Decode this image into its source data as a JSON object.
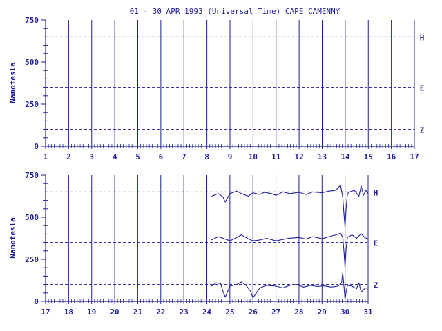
{
  "chart_data": [
    {
      "type": "line",
      "title": "01 - 30 APR 1993 (Universal Time) CAPE CAMENNY",
      "ylabel": "Nanotesla",
      "x_ticks": [
        "1",
        "2",
        "3",
        "4",
        "5",
        "6",
        "7",
        "8",
        "9",
        "10",
        "11",
        "12",
        "13",
        "14",
        "15",
        "16",
        "17"
      ],
      "xlim": [
        1,
        17
      ],
      "ylim": [
        0,
        750
      ],
      "y_ticks": [
        "0",
        "250",
        "500",
        "750"
      ],
      "grid": "vertical lines at each day",
      "series": [
        {
          "name": "H",
          "baseline": 650,
          "values": []
        },
        {
          "name": "E",
          "baseline": 350,
          "values": []
        },
        {
          "name": "Z",
          "baseline": 100,
          "values": []
        }
      ]
    },
    {
      "type": "line",
      "title": "",
      "ylabel": "Nanotesla",
      "x_ticks": [
        "17",
        "18",
        "19",
        "20",
        "21",
        "22",
        "23",
        "24",
        "25",
        "26",
        "27",
        "28",
        "29",
        "30",
        "31"
      ],
      "xlim": [
        17,
        31
      ],
      "ylim": [
        0,
        750
      ],
      "y_ticks": [
        "0",
        "250",
        "500",
        "750"
      ],
      "grid": "vertical lines at each day",
      "series": [
        {
          "name": "H",
          "baseline": 650,
          "x": [
            24.2,
            24.5,
            24.7,
            24.8,
            25.0,
            25.3,
            25.5,
            25.8,
            26.0,
            26.3,
            26.5,
            26.8,
            27.0,
            27.3,
            27.6,
            28.0,
            28.3,
            28.6,
            29.0,
            29.3,
            29.6,
            29.8,
            29.9,
            29.95,
            30.0,
            30.05,
            30.1,
            30.2,
            30.4,
            30.6,
            30.7,
            30.8,
            30.9,
            31.0
          ],
          "values": [
            625,
            640,
            620,
            590,
            640,
            655,
            640,
            625,
            645,
            635,
            648,
            640,
            630,
            650,
            640,
            648,
            635,
            650,
            645,
            655,
            660,
            690,
            620,
            520,
            440,
            560,
            640,
            650,
            660,
            625,
            685,
            630,
            660,
            640
          ]
        },
        {
          "name": "E",
          "baseline": 350,
          "x": [
            24.2,
            24.5,
            24.8,
            25.0,
            25.3,
            25.5,
            25.8,
            26.0,
            26.3,
            26.6,
            27.0,
            27.3,
            27.6,
            28.0,
            28.3,
            28.6,
            29.0,
            29.3,
            29.6,
            29.8,
            29.9,
            29.95,
            30.0,
            30.05,
            30.1,
            30.3,
            30.5,
            30.7,
            30.85,
            31.0
          ],
          "values": [
            365,
            385,
            370,
            360,
            380,
            395,
            372,
            360,
            365,
            375,
            360,
            368,
            376,
            380,
            370,
            385,
            372,
            385,
            395,
            405,
            380,
            300,
            200,
            320,
            380,
            395,
            375,
            402,
            380,
            370
          ]
        },
        {
          "name": "Z",
          "baseline": 100,
          "x": [
            24.2,
            24.4,
            24.6,
            24.7,
            24.8,
            25.0,
            25.3,
            25.5,
            25.7,
            25.9,
            26.0,
            26.3,
            26.6,
            27.0,
            27.3,
            27.6,
            27.9,
            28.2,
            28.5,
            28.8,
            29.1,
            29.4,
            29.7,
            29.85,
            29.9,
            29.95,
            30.0,
            30.05,
            30.1,
            30.3,
            30.5,
            30.6,
            30.7,
            30.8,
            30.9,
            31.0
          ],
          "values": [
            90,
            110,
            105,
            60,
            25,
            90,
            100,
            115,
            95,
            60,
            20,
            80,
            95,
            90,
            80,
            95,
            100,
            85,
            95,
            88,
            92,
            85,
            90,
            110,
            170,
            90,
            10,
            60,
            95,
            90,
            75,
            110,
            55,
            70,
            80,
            78
          ]
        }
      ]
    }
  ],
  "colors": {
    "ink": "#1f1f99",
    "background": "#ffffff"
  }
}
